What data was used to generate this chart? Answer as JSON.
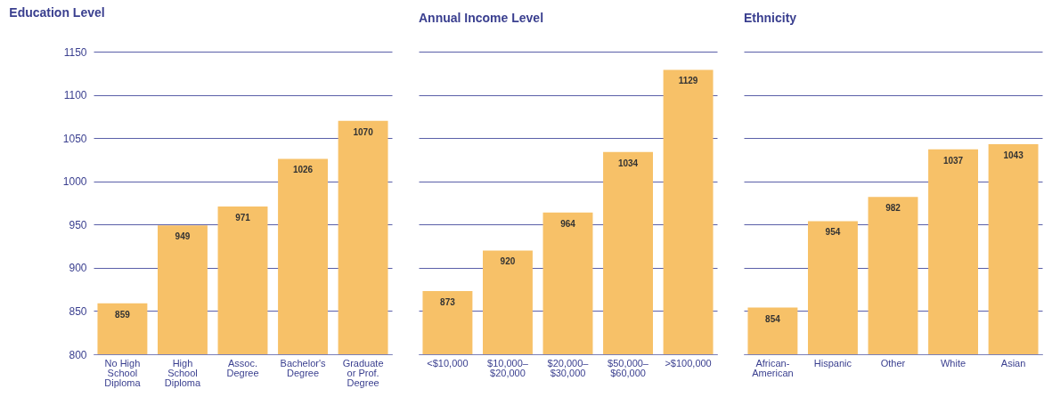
{
  "chart_data": [
    {
      "type": "bar",
      "title": "Education Level",
      "categories": [
        "No High School Diploma",
        "High School Diploma",
        "Assoc. Degree",
        "Bachelor's Degree",
        "Graduate or Prof. Degree"
      ],
      "values": [
        859,
        949,
        971,
        1026,
        1070
      ],
      "color": "#f7c168",
      "ylim": [
        800,
        1150
      ],
      "yticks": [
        800,
        850,
        900,
        950,
        1000,
        1050,
        1100,
        1150
      ],
      "grid": "y",
      "data_labels": true
    },
    {
      "type": "bar",
      "title": "Annual Income Level",
      "categories": [
        "<$10,000",
        "$10,000–$20,000",
        "$20,000–$30,000",
        "$50,000–$60,000",
        ">$100,000"
      ],
      "values": [
        873,
        920,
        964,
        1034,
        1129
      ],
      "color": "#f7c168",
      "ylim": [
        800,
        1150
      ],
      "yticks": [
        800,
        850,
        900,
        950,
        1000,
        1050,
        1100,
        1150
      ],
      "grid": "y",
      "data_labels": true,
      "tick_labels": "x"
    },
    {
      "type": "bar",
      "title": "Ethnicity",
      "categories": [
        "African-American",
        "Hispanic",
        "Other",
        "White",
        "Asian"
      ],
      "values": [
        854,
        954,
        982,
        1037,
        1043
      ],
      "color": "#f7c168",
      "ylim": [
        800,
        1150
      ],
      "yticks": [
        800,
        850,
        900,
        950,
        1000,
        1050,
        1100,
        1150
      ],
      "grid": "y",
      "data_labels": true,
      "tick_labels": "x"
    }
  ]
}
